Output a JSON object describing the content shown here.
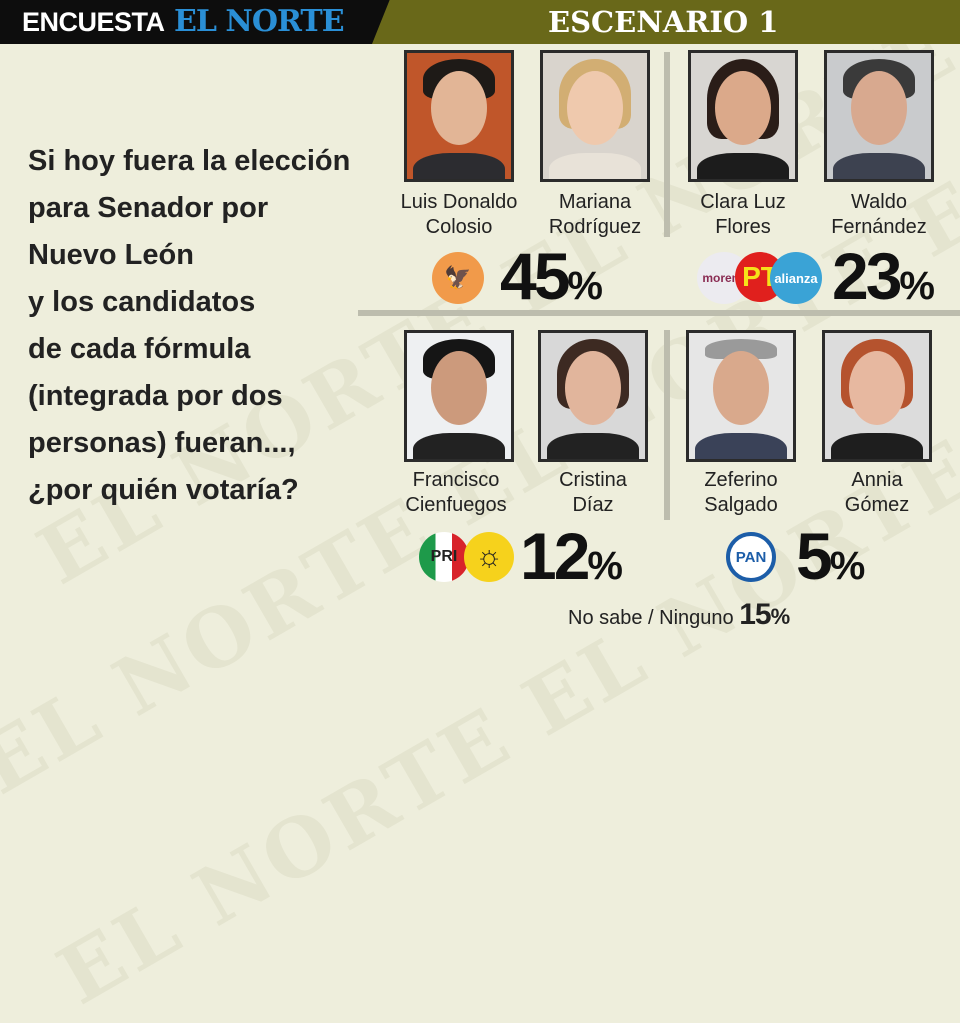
{
  "header": {
    "brand_prefix": "ENCUESTA",
    "brand_name": "EL NORTE",
    "scenario": "ESCENARIO 1"
  },
  "watermark": "EL NORTE",
  "question": [
    "Si hoy fuera la elección",
    "para Senador por",
    "Nuevo León",
    "y los candidatos",
    "de cada fórmula",
    "(integrada por dos",
    "personas) fueran...,",
    "¿por quién votaría?"
  ],
  "formulas": [
    {
      "candidates": [
        {
          "first": "Luis Donaldo",
          "last": "Colosio"
        },
        {
          "first": "Mariana",
          "last": "Rodríguez"
        }
      ],
      "parties": [
        "Movimiento Ciudadano"
      ],
      "percent": "45",
      "color": "#f19a4a"
    },
    {
      "candidates": [
        {
          "first": "Clara Luz",
          "last": "Flores"
        },
        {
          "first": "Waldo",
          "last": "Fernández"
        }
      ],
      "parties": [
        "morena",
        "PT",
        "Nueva Alianza"
      ],
      "percent": "23"
    },
    {
      "candidates": [
        {
          "first": "Francisco",
          "last": "Cienfuegos"
        },
        {
          "first": "Cristina",
          "last": "Díaz"
        }
      ],
      "parties": [
        "PRI",
        "PRD"
      ],
      "percent": "12"
    },
    {
      "candidates": [
        {
          "first": "Zeferino",
          "last": "Salgado"
        },
        {
          "first": "Annia",
          "last": "Gómez"
        }
      ],
      "parties": [
        "PAN"
      ],
      "percent": "5"
    }
  ],
  "logo_text": {
    "morena": "morena",
    "pt": "PT",
    "alianza": "alianza",
    "pri": "PRI",
    "pan": "PAN"
  },
  "no_sabe": {
    "label": "No sabe / Ninguno",
    "percent": "15"
  },
  "percent_sign": "%"
}
